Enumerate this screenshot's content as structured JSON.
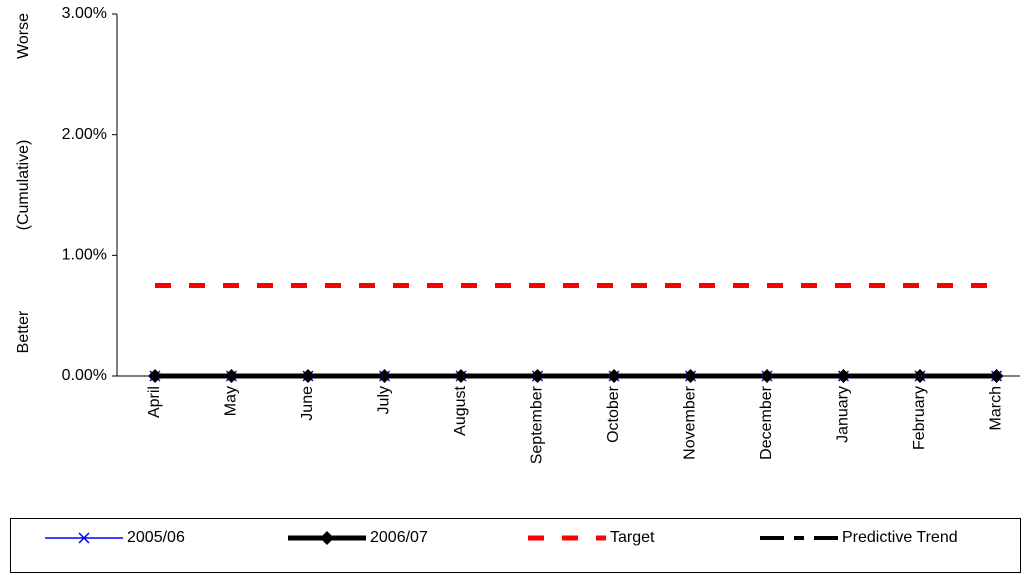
{
  "chart_data": {
    "type": "line",
    "ylabel_top": "Worse",
    "ylabel": "(Cumulative)",
    "ylabel_bottom": "Better",
    "categories": [
      "April",
      "May",
      "June",
      "July",
      "August",
      "September",
      "October",
      "November",
      "December",
      "January",
      "February",
      "March"
    ],
    "series": [
      {
        "name": "2005/06",
        "color": "#0000ff",
        "marker": "x",
        "values": [
          0,
          0,
          0,
          0,
          0,
          0,
          0,
          0,
          0,
          0,
          0,
          0
        ]
      },
      {
        "name": "2006/07",
        "color": "#000000",
        "marker": "diamond",
        "values": [
          0,
          0,
          0,
          0,
          0,
          0,
          0,
          0,
          0,
          0,
          0,
          0
        ]
      },
      {
        "name": "Target",
        "color": "#ff0000",
        "dash": "red",
        "values": [
          0.75,
          0.75,
          0.75,
          0.75,
          0.75,
          0.75,
          0.75,
          0.75,
          0.75,
          0.75,
          0.75,
          0.75
        ]
      },
      {
        "name": "Predictive Trend",
        "color": "#000000",
        "dash": "long",
        "values": [
          null,
          null,
          null,
          null,
          null,
          null,
          null,
          null,
          null,
          null,
          null,
          null
        ]
      }
    ],
    "ylim": [
      0,
      3
    ],
    "yticks": [
      {
        "value": 0,
        "label": "0.00%"
      },
      {
        "value": 1,
        "label": "1.00%"
      },
      {
        "value": 2,
        "label": "2.00%"
      },
      {
        "value": 3,
        "label": "3.00%"
      }
    ]
  }
}
